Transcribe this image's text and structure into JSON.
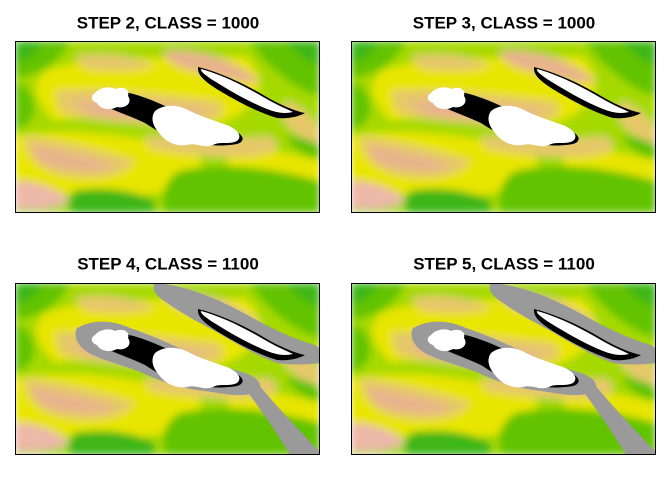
{
  "panels": [
    {
      "title": "STEP 2, CLASS = 1000",
      "grey_mask": false
    },
    {
      "title": "STEP 3, CLASS = 1000",
      "grey_mask": false
    },
    {
      "title": "STEP 4, CLASS = 1100",
      "grey_mask": true
    },
    {
      "title": "STEP 5, CLASS = 1100",
      "grey_mask": true
    }
  ],
  "colors": {
    "green_dark": "#3cb614",
    "green": "#62c300",
    "lime": "#a6d900",
    "yellow": "#e8e500",
    "tan": "#e6c86a",
    "salmon": "#e8b48c",
    "pink": "#ecb8a8",
    "lake": "#ffffff",
    "lake_edge": "#000000",
    "grey_class": "#9a9a9a",
    "frame": "#000000"
  }
}
